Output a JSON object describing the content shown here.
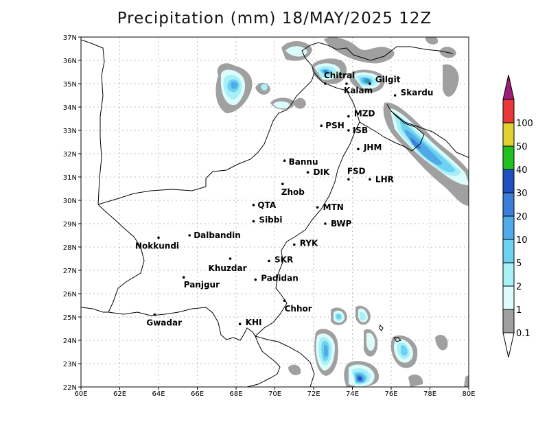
{
  "title": "Precipitation (mm) 18/MAY/2025 12Z",
  "map": {
    "lon_range": [
      60,
      80
    ],
    "lat_range": [
      22,
      37
    ],
    "lon_ticks": [
      {
        "value": 60,
        "label": "60E"
      },
      {
        "value": 62,
        "label": "62E"
      },
      {
        "value": 64,
        "label": "64E"
      },
      {
        "value": 66,
        "label": "66E"
      },
      {
        "value": 68,
        "label": "68E"
      },
      {
        "value": 70,
        "label": "70E"
      },
      {
        "value": 72,
        "label": "72E"
      },
      {
        "value": 74,
        "label": "74E"
      },
      {
        "value": 76,
        "label": "76E"
      },
      {
        "value": 78,
        "label": "78E"
      },
      {
        "value": 80,
        "label": "80E"
      }
    ],
    "lat_ticks": [
      {
        "value": 22,
        "label": "22N"
      },
      {
        "value": 23,
        "label": "23N"
      },
      {
        "value": 24,
        "label": "24N"
      },
      {
        "value": 25,
        "label": "25N"
      },
      {
        "value": 26,
        "label": "26N"
      },
      {
        "value": 27,
        "label": "27N"
      },
      {
        "value": 28,
        "label": "28N"
      },
      {
        "value": 29,
        "label": "29N"
      },
      {
        "value": 30,
        "label": "30N"
      },
      {
        "value": 31,
        "label": "31N"
      },
      {
        "value": 32,
        "label": "32N"
      },
      {
        "value": 33,
        "label": "33N"
      },
      {
        "value": 34,
        "label": "34N"
      },
      {
        "value": 35,
        "label": "35N"
      },
      {
        "value": 36,
        "label": "36N"
      },
      {
        "value": 37,
        "label": "37N"
      }
    ],
    "grid": true
  },
  "cities": [
    {
      "name": "Chitral",
      "lon": 72.6,
      "lat": 35.0
    },
    {
      "name": "Gilgit",
      "lon": 74.9,
      "lat": 35.0
    },
    {
      "name": "Kalam",
      "lon": 73.7,
      "lat": 35.0
    },
    {
      "name": "Skardu",
      "lon": 76.2,
      "lat": 34.5
    },
    {
      "name": "MZD",
      "lon": 73.8,
      "lat": 33.6
    },
    {
      "name": "PSH",
      "lon": 72.4,
      "lat": 33.2
    },
    {
      "name": "ISB",
      "lon": 73.8,
      "lat": 33.0
    },
    {
      "name": "JHM",
      "lon": 74.3,
      "lat": 32.2
    },
    {
      "name": "Bannu",
      "lon": 70.5,
      "lat": 31.7
    },
    {
      "name": "DIK",
      "lon": 71.7,
      "lat": 31.2
    },
    {
      "name": "FSD",
      "lon": 73.8,
      "lat": 30.9
    },
    {
      "name": "LHR",
      "lon": 74.9,
      "lat": 30.9
    },
    {
      "name": "Zhob",
      "lon": 70.4,
      "lat": 30.7
    },
    {
      "name": "QTA",
      "lon": 68.9,
      "lat": 29.8
    },
    {
      "name": "MTN",
      "lon": 72.2,
      "lat": 29.7
    },
    {
      "name": "Sibbi",
      "lon": 68.9,
      "lat": 29.1
    },
    {
      "name": "BWP",
      "lon": 72.6,
      "lat": 29.0
    },
    {
      "name": "Dalbandin",
      "lon": 65.6,
      "lat": 28.5
    },
    {
      "name": "Nokkundi",
      "lon": 64.0,
      "lat": 28.4
    },
    {
      "name": "RYK",
      "lon": 71.0,
      "lat": 28.1
    },
    {
      "name": "Khuzdar",
      "lon": 67.7,
      "lat": 27.5
    },
    {
      "name": "SKR",
      "lon": 69.7,
      "lat": 27.4
    },
    {
      "name": "Panjgur",
      "lon": 65.3,
      "lat": 26.7
    },
    {
      "name": "Padidan",
      "lon": 69.0,
      "lat": 26.6
    },
    {
      "name": "Chhor",
      "lon": 70.5,
      "lat": 25.7
    },
    {
      "name": "KHI",
      "lon": 68.2,
      "lat": 24.7
    },
    {
      "name": "Gwadar",
      "lon": 63.8,
      "lat": 25.1
    }
  ],
  "colorbar": {
    "levels": [
      {
        "label": "0.1",
        "color": "#a0a0a0"
      },
      {
        "label": "1",
        "color": "#dcfcfc"
      },
      {
        "label": "2",
        "color": "#a8f0f8"
      },
      {
        "label": "5",
        "color": "#6cd2f0"
      },
      {
        "label": "10",
        "color": "#50aae8"
      },
      {
        "label": "20",
        "color": "#3a7ed8"
      },
      {
        "label": "30",
        "color": "#2050c0"
      },
      {
        "label": "40",
        "color": "#20c020"
      },
      {
        "label": "50",
        "color": "#e0d030"
      },
      {
        "label": "100",
        "color": "#e83838"
      }
    ],
    "low_end_color": "#ffffff",
    "high_end_color": "#981e78"
  },
  "colors": {
    "grid": "#bbbbbb",
    "borders": "#000000"
  }
}
